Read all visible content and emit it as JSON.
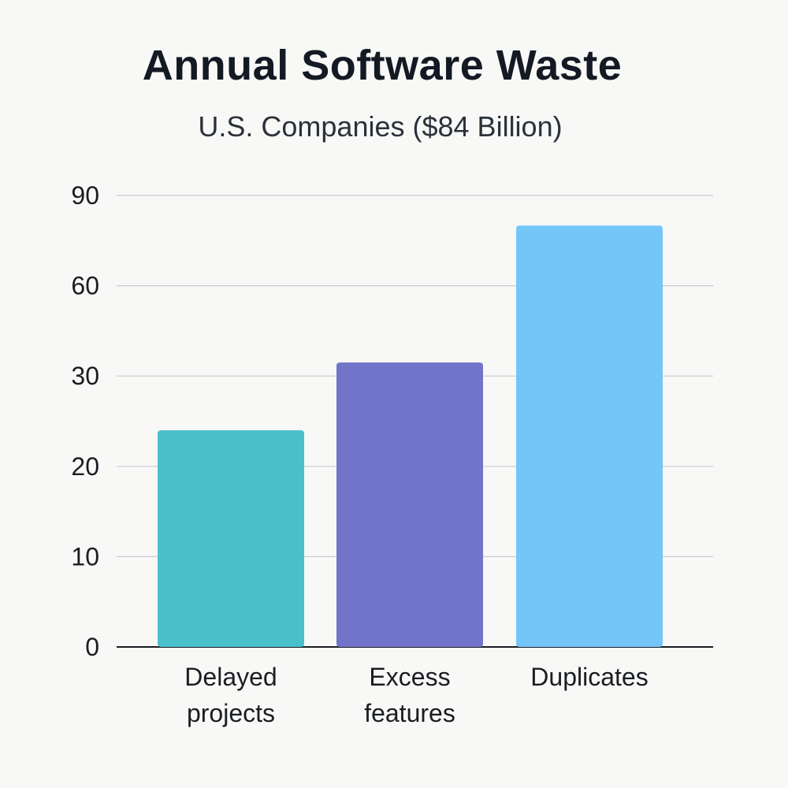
{
  "chart_data": {
    "type": "bar",
    "title": "Annual Software Waste",
    "subtitle": "U.S. Companies ($84 Billion)",
    "xlabel": "",
    "ylabel": "",
    "y_ticks": [
      "0",
      "10",
      "20",
      "30",
      "60",
      "90"
    ],
    "categories": [
      [
        "Delayed",
        "projects"
      ],
      [
        "Excess",
        "features"
      ],
      [
        "Duplicates"
      ]
    ],
    "values": [
      24,
      34.5,
      80
    ],
    "colors": [
      "#4ac0cb",
      "#7274c9",
      "#74c6f9"
    ],
    "grid": true,
    "legend": "none"
  }
}
